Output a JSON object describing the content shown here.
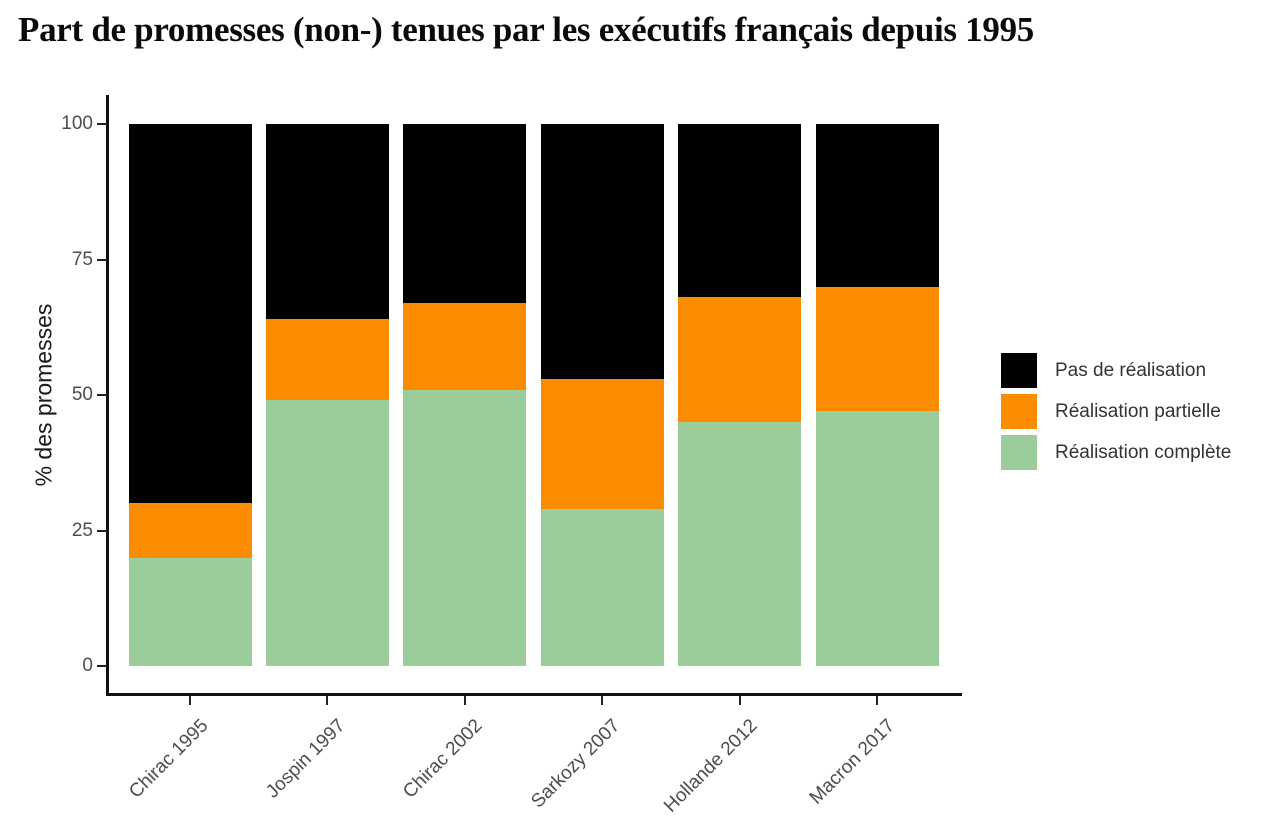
{
  "title": "Part de promesses (non-) tenues par les exécutifs français depuis 1995",
  "colors": {
    "black_series": "#000000",
    "orange_series": "#FB8C00",
    "green_series": "#9BCD9B",
    "axis": "#111111",
    "tick_label": "#4d4d4d",
    "background": "#ffffff"
  },
  "chart_data": {
    "type": "bar",
    "stacked": true,
    "percent": true,
    "title": "Part de promesses (non-) tenues par les exécutifs français depuis 1995",
    "xlabel": "",
    "ylabel": "% des promesses",
    "ylim": [
      0,
      100
    ],
    "y_ticks": [
      0,
      25,
      50,
      75,
      100
    ],
    "grid": "off",
    "categories": [
      "Chirac 1995",
      "Jospin 1997",
      "Chirac 2002",
      "Sarkozy 2007",
      "Hollande 2012",
      "Macron 2017"
    ],
    "series": [
      {
        "name": "Réalisation complète",
        "color": "#9BCD9B",
        "values": [
          20,
          49,
          51,
          29,
          45,
          47
        ]
      },
      {
        "name": "Réalisation partielle",
        "color": "#FB8C00",
        "values": [
          10,
          15,
          16,
          24,
          23,
          23
        ]
      },
      {
        "name": "Pas de réalisation",
        "color": "#000000",
        "values": [
          70,
          36,
          33,
          47,
          32,
          30
        ]
      }
    ],
    "legend": {
      "position": "right",
      "items": [
        "Pas de réalisation",
        "Réalisation partielle",
        "Réalisation complète"
      ]
    }
  }
}
